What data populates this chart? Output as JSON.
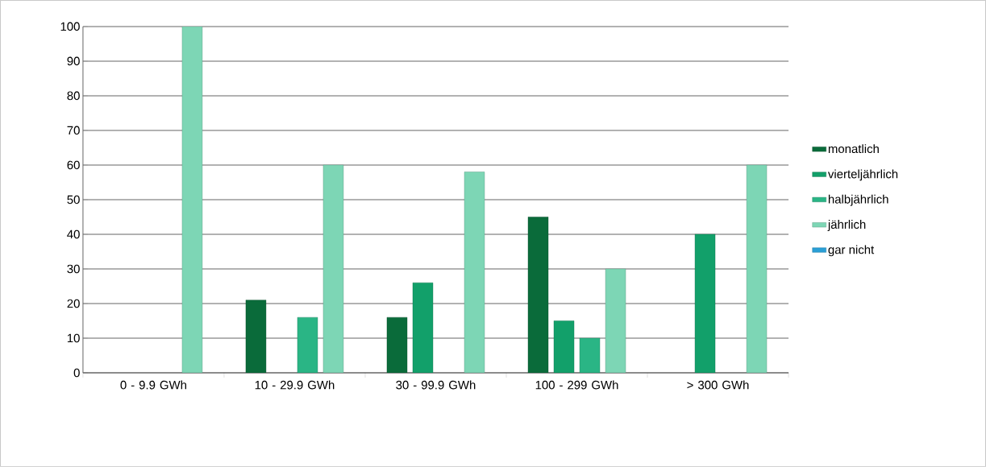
{
  "chart_data": {
    "type": "bar",
    "categories": [
      "0 - 9.9 GWh",
      "10 - 29.9 GWh",
      "30 - 99.9 GWh",
      "100 - 299 GWh",
      "> 300 GWh"
    ],
    "series": [
      {
        "name": "monatlich",
        "color": "#0a6b3a",
        "values": [
          null,
          21,
          16,
          45,
          null
        ]
      },
      {
        "name": "vierteljährlich",
        "color": "#12a06a",
        "values": [
          null,
          null,
          26,
          15,
          40
        ]
      },
      {
        "name": "halbjährlich",
        "color": "#2ab585",
        "values": [
          null,
          16,
          null,
          10,
          null
        ]
      },
      {
        "name": "jährlich",
        "color": "#7dd6b5",
        "values": [
          100,
          60,
          58,
          30,
          60
        ]
      },
      {
        "name": "gar nicht",
        "color": "#2a9fd6",
        "values": [
          null,
          null,
          null,
          null,
          null
        ]
      }
    ],
    "ylim": [
      0,
      100
    ],
    "yticks": [
      0,
      10,
      20,
      30,
      40,
      50,
      60,
      70,
      80,
      90,
      100
    ],
    "grid": "y",
    "legend": "right"
  }
}
